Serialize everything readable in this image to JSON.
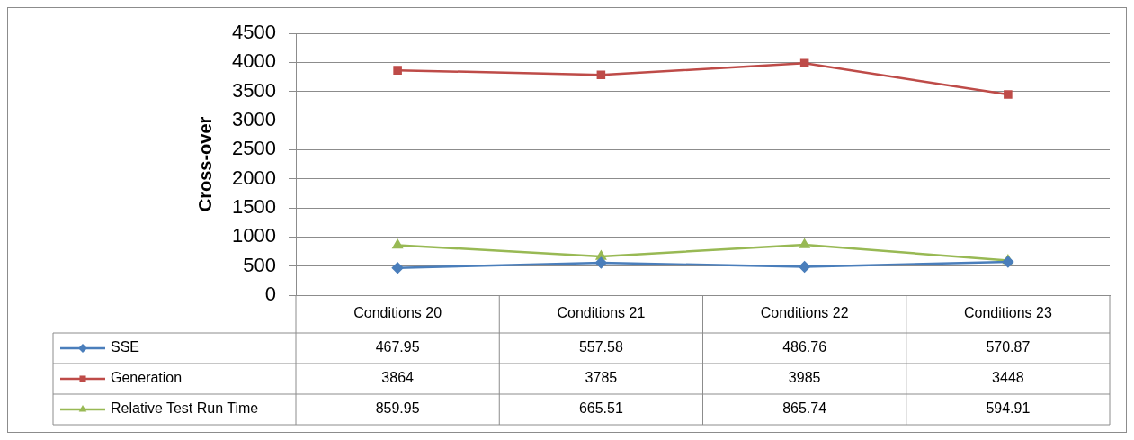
{
  "chart_data": {
    "type": "line",
    "ylabel": "Cross-over",
    "categories": [
      "Conditions 20",
      "Conditions 21",
      "Conditions 22",
      "Conditions 23"
    ],
    "series": [
      {
        "name": "SSE",
        "color": "#4a7ebb",
        "marker": "diamond",
        "values": [
          467.95,
          557.58,
          486.76,
          570.87
        ]
      },
      {
        "name": "Generation",
        "color": "#be4b48",
        "marker": "square",
        "values": [
          3864,
          3785,
          3985,
          3448
        ]
      },
      {
        "name": "Relative Test Run Time",
        "color": "#98b954",
        "marker": "triangle",
        "values": [
          859.95,
          665.51,
          865.74,
          594.91
        ]
      }
    ],
    "ylim": [
      0,
      4500
    ],
    "yticks": [
      0,
      500,
      1000,
      1500,
      2000,
      2500,
      3000,
      3500,
      4000,
      4500
    ],
    "grid": "y",
    "legend": "bottom",
    "data_labels": true
  }
}
